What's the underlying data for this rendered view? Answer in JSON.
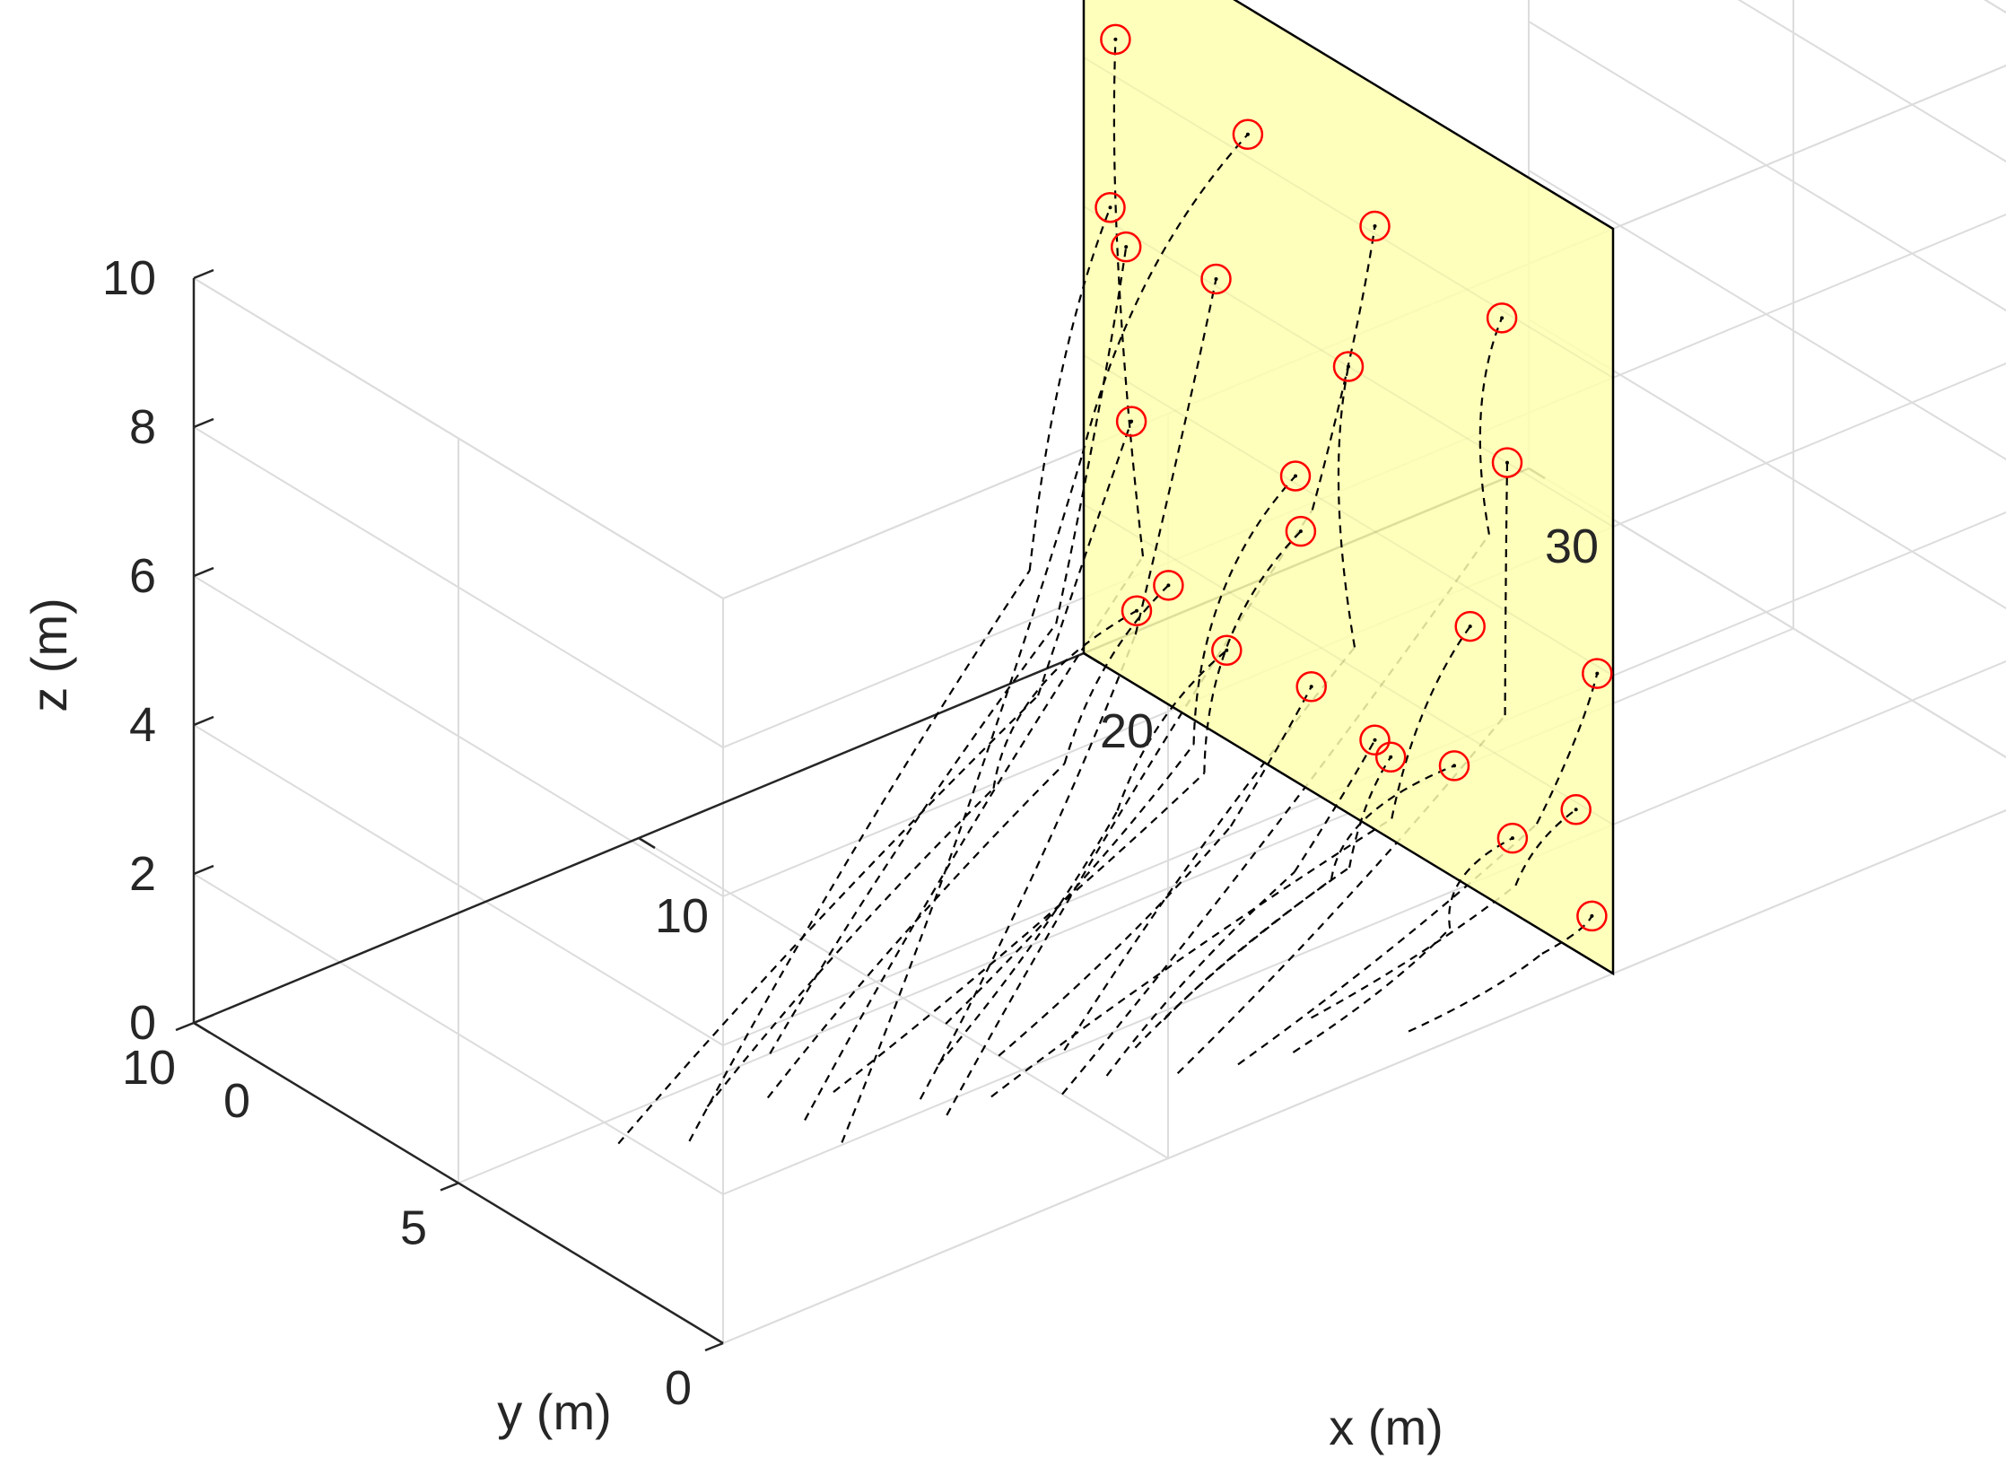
{
  "chart_data": {
    "type": "line3d",
    "xlabel": "x (m)",
    "ylabel": "y (m)",
    "zlabel": "z (m)",
    "xlim": [
      0,
      30
    ],
    "ylim": [
      0,
      10
    ],
    "zlim": [
      0,
      10
    ],
    "x_ticks": [
      0,
      10,
      20,
      30
    ],
    "y_ticks": [
      0,
      5,
      10
    ],
    "z_ticks": [
      0,
      2,
      4,
      6,
      8,
      10
    ],
    "grid": true,
    "wall": {
      "x": 20,
      "y_range": [
        0,
        10
      ],
      "z_range": [
        0,
        10
      ],
      "color": "#ffffb0",
      "edge_color": "#000000"
    },
    "target_marker_color": "#ff0000",
    "trajectory_color": "#000000",
    "targets": [
      {
        "y": 9.4,
        "z": 8.5
      },
      {
        "y": 6.9,
        "z": 8.3
      },
      {
        "y": 4.5,
        "z": 8.1
      },
      {
        "y": 2.1,
        "z": 7.9
      },
      {
        "y": 9.5,
        "z": 6.2
      },
      {
        "y": 7.5,
        "z": 6.1
      },
      {
        "y": 5.0,
        "z": 6.0
      },
      {
        "y": 2.0,
        "z": 6.0
      },
      {
        "y": 9.1,
        "z": 3.5
      },
      {
        "y": 5.9,
        "z": 3.4
      },
      {
        "y": 2.7,
        "z": 3.5
      },
      {
        "y": 0.3,
        "z": 3.9
      },
      {
        "y": 9.0,
        "z": 1.0
      },
      {
        "y": 7.3,
        "z": 1.2
      },
      {
        "y": 4.5,
        "z": 1.2
      },
      {
        "y": 1.9,
        "z": 1.0
      },
      {
        "y": 8.4,
        "z": 1.6
      },
      {
        "y": 5.7,
        "z": 1.4
      },
      {
        "y": 3.0,
        "z": 1.5
      },
      {
        "y": 0.7,
        "z": 1.9
      },
      {
        "y": 9.2,
        "z": 5.8
      },
      {
        "y": 6.0,
        "z": 4.1
      },
      {
        "y": 4.2,
        "z": 1.1
      },
      {
        "y": 0.4,
        "z": 0.6
      }
    ],
    "trajectories": [
      {
        "start": [
          6,
          3.5,
          0
        ],
        "end": [
          20,
          9.4,
          8.5
        ],
        "mid": [
          18,
          7.2,
          3.0
        ]
      },
      {
        "start": [
          6,
          2.8,
          0
        ],
        "end": [
          20,
          6.9,
          8.3
        ],
        "mid": [
          17,
          7.5,
          4.5
        ]
      },
      {
        "start": [
          8,
          2.5,
          0
        ],
        "end": [
          20,
          4.5,
          8.1
        ],
        "mid": [
          18,
          4.0,
          5.0
        ]
      },
      {
        "start": [
          10,
          2.0,
          0
        ],
        "end": [
          20,
          2.1,
          7.9
        ],
        "mid": [
          19,
          1.5,
          5.5
        ]
      },
      {
        "start": [
          4,
          4.0,
          0
        ],
        "end": [
          20,
          9.5,
          6.2
        ],
        "mid": [
          17,
          8.5,
          2.5
        ]
      },
      {
        "start": [
          8,
          3.0,
          0
        ],
        "end": [
          20,
          7.5,
          6.1
        ],
        "mid": [
          17,
          6.5,
          2.5
        ]
      },
      {
        "start": [
          11,
          2.8,
          0
        ],
        "end": [
          20,
          5.0,
          6.0
        ],
        "mid": [
          18,
          3.2,
          3.5
        ]
      },
      {
        "start": [
          12,
          1.5,
          0
        ],
        "end": [
          20,
          2.0,
          6.0
        ],
        "mid": [
          19,
          1.2,
          3.2
        ]
      },
      {
        "start": [
          3,
          4.5,
          0
        ],
        "end": [
          20,
          9.1,
          3.5
        ],
        "mid": [
          16,
          7.5,
          1.5
        ]
      },
      {
        "start": [
          7,
          3.8,
          0
        ],
        "end": [
          20,
          5.9,
          3.4
        ],
        "mid": [
          17,
          5.2,
          1.2
        ]
      },
      {
        "start": [
          9,
          2.5,
          0
        ],
        "end": [
          20,
          2.7,
          3.5
        ],
        "mid": [
          18,
          2.5,
          1.5
        ]
      },
      {
        "start": [
          13,
          1.2,
          0
        ],
        "end": [
          20,
          0.3,
          3.9
        ],
        "mid": [
          19,
          0.6,
          2.0
        ]
      },
      {
        "start": [
          5,
          4.5,
          0
        ],
        "end": [
          20,
          9.0,
          1.0
        ],
        "mid": [
          15,
          7.5,
          0.5
        ]
      },
      {
        "start": [
          9,
          3.5,
          0
        ],
        "end": [
          20,
          7.3,
          1.2
        ],
        "mid": [
          16,
          6.0,
          0.6
        ]
      },
      {
        "start": [
          11,
          2.0,
          0
        ],
        "end": [
          20,
          4.5,
          1.2
        ],
        "mid": [
          17,
          3.5,
          0.6
        ]
      },
      {
        "start": [
          14,
          1.0,
          0
        ],
        "end": [
          20,
          1.9,
          1.0
        ],
        "mid": [
          18,
          1.4,
          0.5
        ]
      },
      {
        "start": [
          6,
          4.2,
          0
        ],
        "end": [
          20,
          8.4,
          1.6
        ],
        "mid": [
          16,
          7.0,
          0.8
        ]
      },
      {
        "start": [
          10,
          3.2,
          0
        ],
        "end": [
          20,
          5.7,
          1.4
        ],
        "mid": [
          17,
          4.7,
          0.7
        ]
      },
      {
        "start": [
          12,
          2.3,
          0
        ],
        "end": [
          20,
          3.0,
          1.5
        ],
        "mid": [
          17,
          2.8,
          0.8
        ]
      },
      {
        "start": [
          15,
          1.5,
          0
        ],
        "end": [
          20,
          0.7,
          1.9
        ],
        "mid": [
          19,
          1.0,
          1.0
        ]
      },
      {
        "start": [
          7,
          5.0,
          0
        ],
        "end": [
          20,
          9.2,
          5.8
        ],
        "mid": [
          17,
          8.0,
          2.0
        ]
      },
      {
        "start": [
          10,
          4.2,
          0
        ],
        "end": [
          20,
          6.0,
          4.1
        ],
        "mid": [
          17,
          5.4,
          1.5
        ]
      },
      {
        "start": [
          13,
          2.6,
          0
        ],
        "end": [
          20,
          4.2,
          1.1
        ],
        "mid": [
          18,
          3.3,
          0.5
        ]
      },
      {
        "start": [
          16,
          0.5,
          0
        ],
        "end": [
          20,
          0.4,
          0.6
        ],
        "mid": [
          19,
          0.5,
          0.3
        ]
      }
    ]
  }
}
